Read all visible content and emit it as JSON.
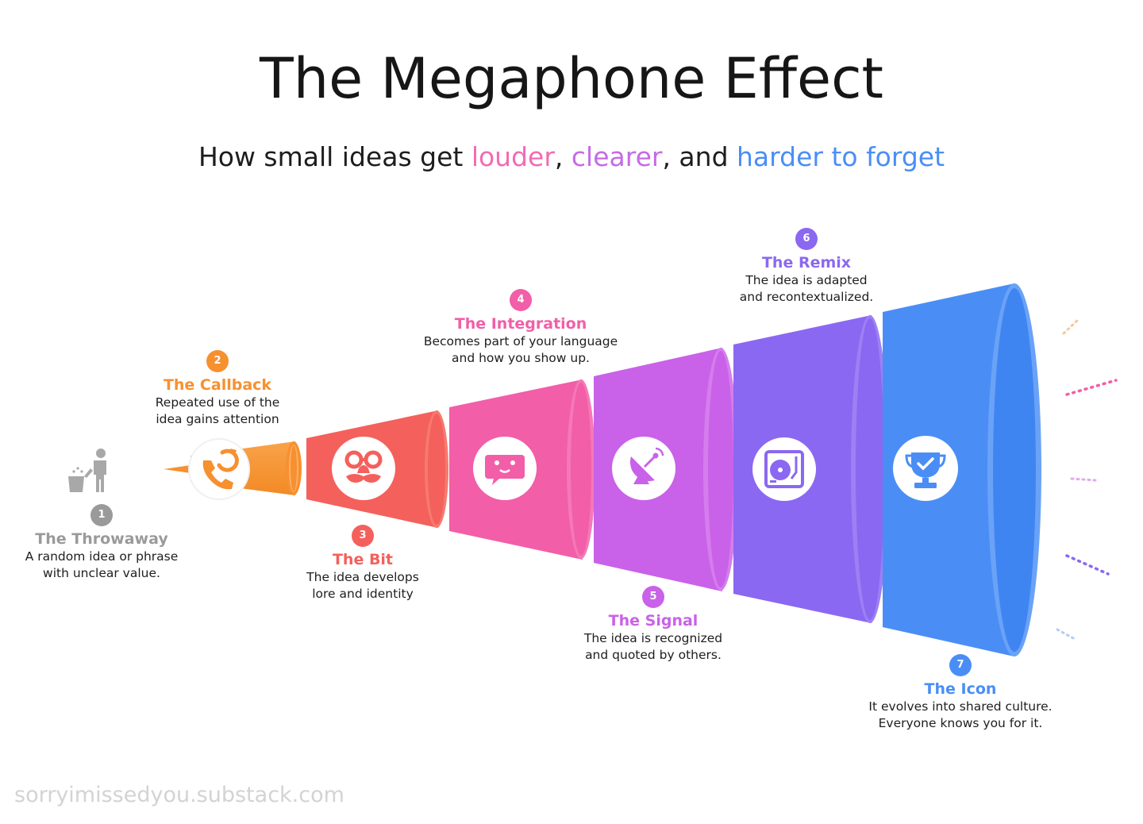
{
  "title": "The Megaphone Effect",
  "subtitle": {
    "prefix": "How small ideas get ",
    "w1": "louder",
    "sep1": ", ",
    "w2": "clearer",
    "sep2": ", and ",
    "w3": "harder to forget"
  },
  "colors": {
    "gray": "#9a9a9a",
    "orange": "#f7902f",
    "red": "#f4605c",
    "pink": "#f25ea8",
    "magenta": "#c962e8",
    "violet": "#8b68f1",
    "blue": "#4a8ef5",
    "louder": "#f26bb4",
    "clearer": "#c56be7",
    "harder": "#4a8ef5"
  },
  "stages": [
    {
      "num": "1",
      "name": "The Throwaway",
      "desc": [
        "A random idea or phrase",
        "with unclear value."
      ],
      "icon": "trash-person-icon"
    },
    {
      "num": "2",
      "name": "The Callback",
      "desc": [
        "Repeated use of the",
        "idea gains attention"
      ],
      "icon": "phone-callback-icon"
    },
    {
      "num": "3",
      "name": "The Bit",
      "desc": [
        "The idea develops",
        "lore and identity"
      ],
      "icon": "disguise-glasses-icon"
    },
    {
      "num": "4",
      "name": "The Integration",
      "desc": [
        "Becomes part of your language",
        "and how you show up."
      ],
      "icon": "chat-bubble-icon"
    },
    {
      "num": "5",
      "name": "The Signal",
      "desc": [
        "The idea is recognized",
        "and quoted by others."
      ],
      "icon": "satellite-dish-icon"
    },
    {
      "num": "6",
      "name": "The Remix",
      "desc": [
        "The idea is adapted",
        "and recontextualized."
      ],
      "icon": "turntable-icon"
    },
    {
      "num": "7",
      "name": "The Icon",
      "desc": [
        "It evolves into shared culture.",
        "Everyone knows you for it."
      ],
      "icon": "trophy-icon"
    }
  ],
  "watermark": "sorryimissedyou.substack.com"
}
